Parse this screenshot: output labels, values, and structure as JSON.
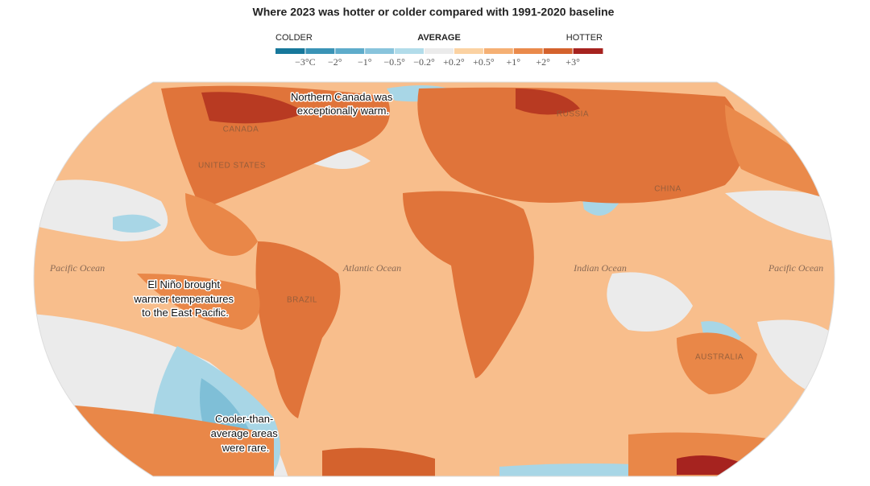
{
  "header": {
    "title": "Where 2023 was hotter or colder compared with 1991-2020 baseline"
  },
  "legend": {
    "colder": "COLDER",
    "average": "AVERAGE",
    "hotter": "HOTTER",
    "colors": [
      "#17789b",
      "#3a93b6",
      "#5eaccb",
      "#88c4dc",
      "#b2dcea",
      "#ebebeb",
      "#fbd2a2",
      "#f5b074",
      "#ea8a4b",
      "#d4622d",
      "#a6231f"
    ],
    "ticks": [
      "−3°C",
      "−2°",
      "−1°",
      "−0.5°",
      "−0.2°",
      "+0.2°",
      "+0.5°",
      "+1°",
      "+2°",
      "+3°"
    ]
  },
  "map": {
    "countries": [
      "CANADA",
      "UNITED STATES",
      "RUSSIA",
      "CHINA",
      "BRAZIL",
      "AUSTRALIA"
    ],
    "oceans": [
      "Pacific Ocean",
      "Atlantic Ocean",
      "Indian Ocean",
      "Pacific Ocean"
    ],
    "annotations": [
      [
        "Northern Canada was",
        "exceptionally warm."
      ],
      [
        "El Niño brought",
        "warmer temperatures",
        "to the East Pacific."
      ],
      [
        "Cooler-than-",
        "average areas",
        "were rare."
      ]
    ]
  }
}
